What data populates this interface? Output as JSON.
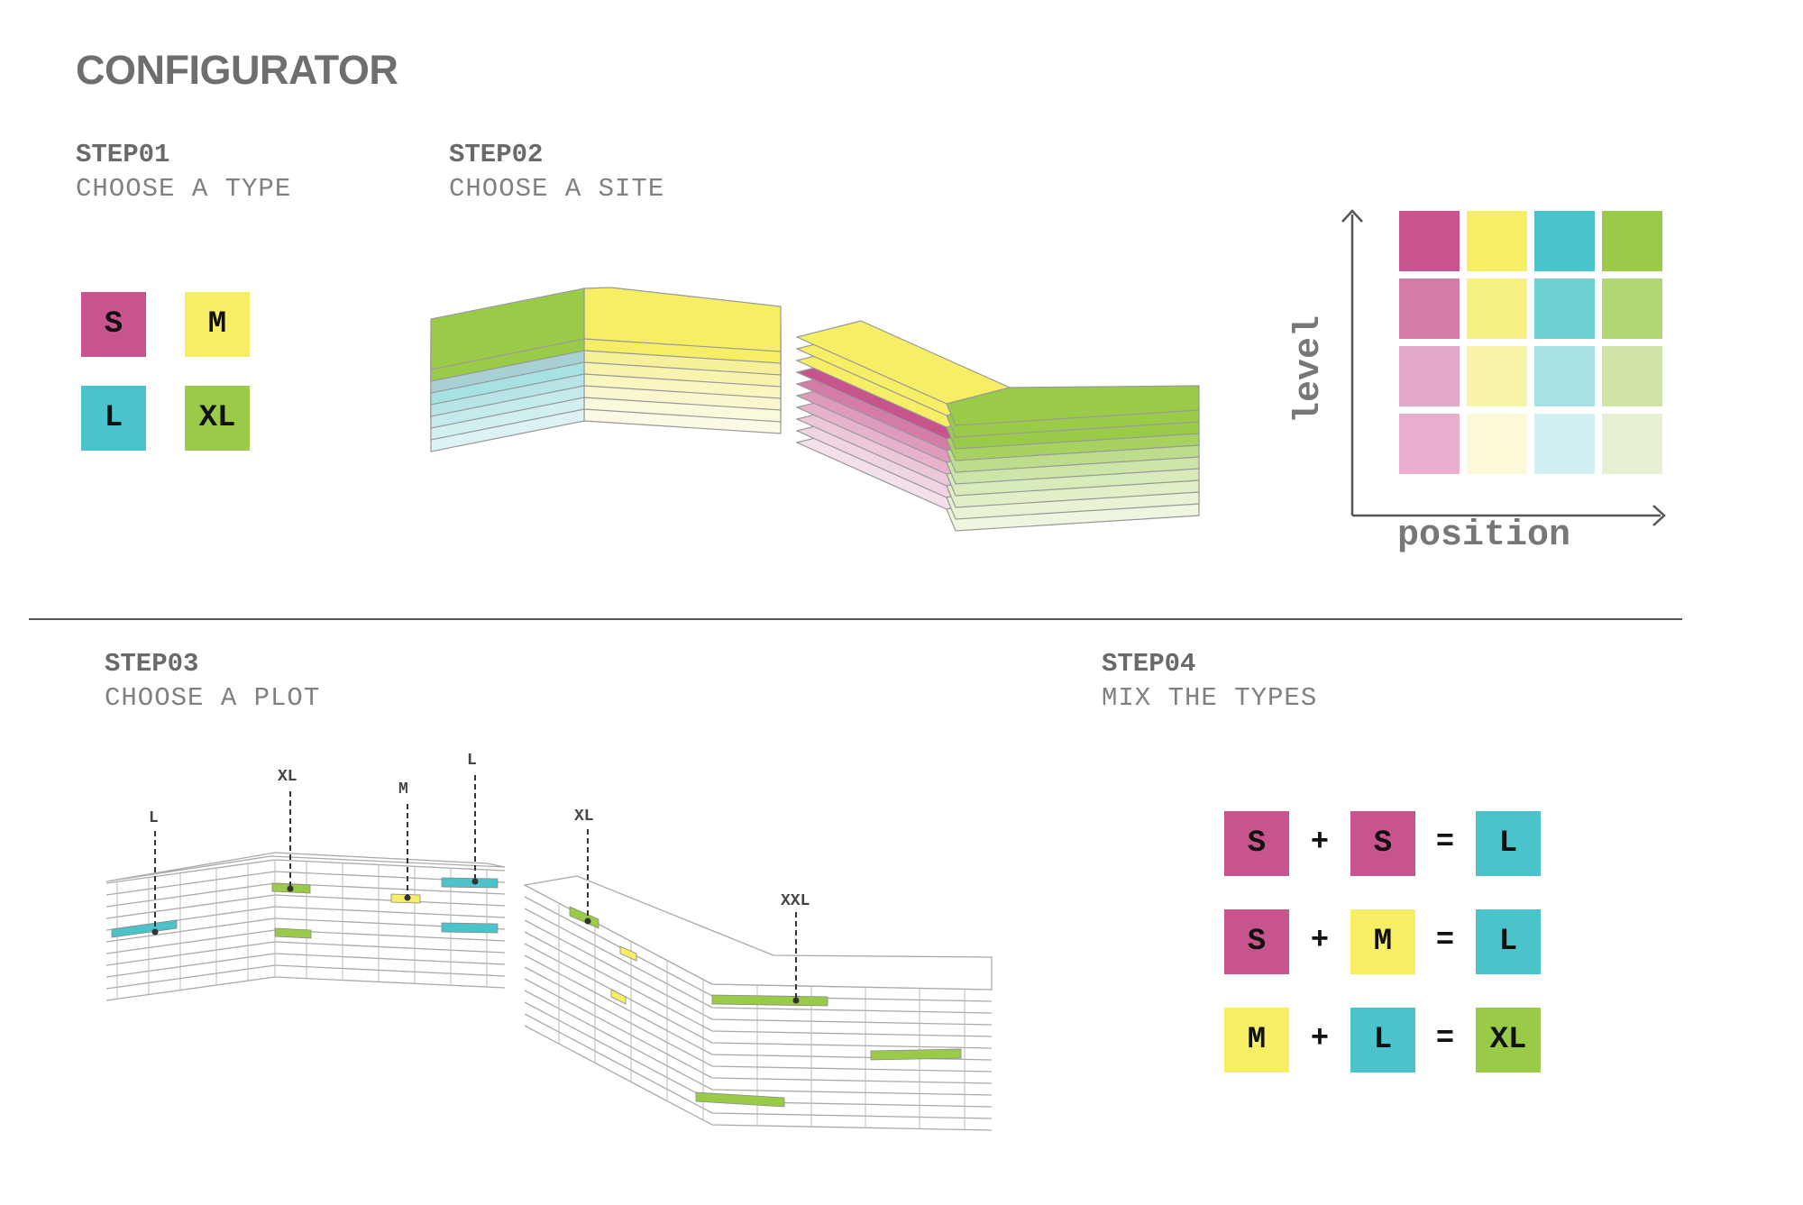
{
  "title": "CONFIGURATOR",
  "steps": {
    "s1": {
      "num": "STEP01",
      "desc": "CHOOSE A TYPE"
    },
    "s2": {
      "num": "STEP02",
      "desc": "CHOOSE A SITE"
    },
    "s3": {
      "num": "STEP03",
      "desc": "CHOOSE A PLOT"
    },
    "s4": {
      "num": "STEP04",
      "desc": "MIX THE TYPES"
    }
  },
  "colors": {
    "S": "#c7548c",
    "M": "#f6ef66",
    "L": "#4bc3cb",
    "XL": "#9acb48"
  },
  "types": {
    "S": "S",
    "M": "M",
    "L": "L",
    "XL": "XL"
  },
  "matrix": {
    "ylabel": "level",
    "xlabel": "position",
    "rows": [
      [
        "#c7548c",
        "#f6ef66",
        "#4bc3cb",
        "#9acb48"
      ],
      [
        "#d47ba8",
        "#f6f180",
        "#6fd0d6",
        "#b1d774"
      ],
      [
        "#e3a9c9",
        "#f8f5a9",
        "#a6e1e3",
        "#cfe4a6"
      ],
      [
        "#e7afcd",
        "#fbf9d6",
        "#d2f0f1",
        "#e6f0d2"
      ]
    ]
  },
  "plot_labels": {
    "l1": "L",
    "xl1": "XL",
    "m1": "M",
    "l2": "L",
    "xl2": "XL",
    "xxl": "XXL"
  },
  "mix": {
    "plus": "+",
    "equals": "=",
    "rows": [
      {
        "a": "S",
        "b": "S",
        "c": "L"
      },
      {
        "a": "S",
        "b": "M",
        "c": "L"
      },
      {
        "a": "M",
        "b": "L",
        "c": "XL"
      }
    ]
  }
}
